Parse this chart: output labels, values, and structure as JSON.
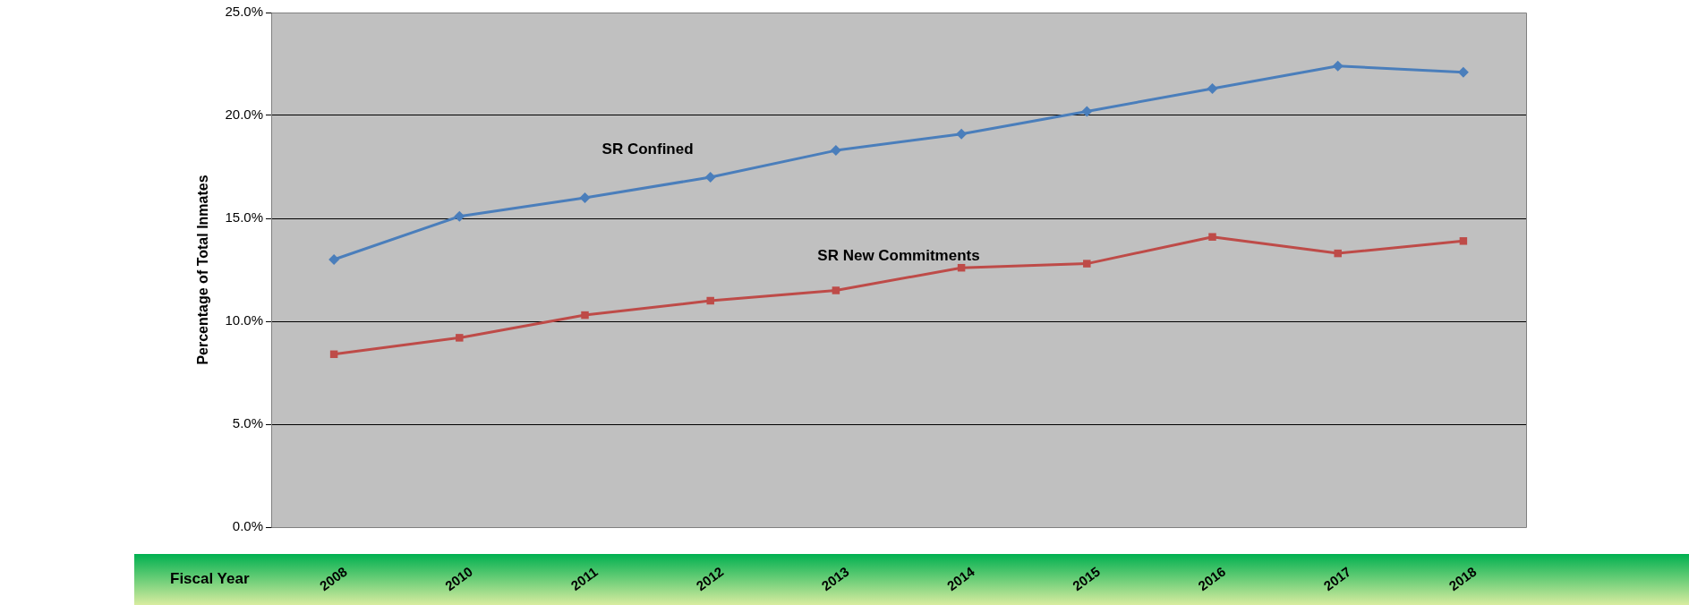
{
  "chart_data": {
    "type": "line",
    "xlabel": "Fiscal Year",
    "ylabel": "Percentage of Total Inmates",
    "categories": [
      "2008",
      "2010",
      "2011",
      "2012",
      "2013",
      "2014",
      "2015",
      "2016",
      "2017",
      "2018"
    ],
    "ylim": [
      0,
      25
    ],
    "yticks": [
      {
        "value": 0,
        "label": "0.0%"
      },
      {
        "value": 5,
        "label": "5.0%"
      },
      {
        "value": 10,
        "label": "10.0%"
      },
      {
        "value": 15,
        "label": "15.0%"
      },
      {
        "value": 20,
        "label": "20.0%"
      },
      {
        "value": 25,
        "label": "25.0%"
      }
    ],
    "grid": "y",
    "legend": false,
    "series": [
      {
        "name": "SR Confined",
        "color": "#4a7ebb",
        "marker": "diamond",
        "values": [
          13.0,
          15.1,
          16.0,
          17.0,
          18.3,
          19.1,
          20.2,
          21.3,
          22.4,
          22.1
        ]
      },
      {
        "name": "SR New Commitments",
        "color": "#be4b48",
        "marker": "square",
        "values": [
          8.4,
          9.2,
          10.3,
          11.0,
          11.5,
          12.6,
          12.8,
          14.1,
          13.3,
          13.9
        ]
      }
    ]
  }
}
